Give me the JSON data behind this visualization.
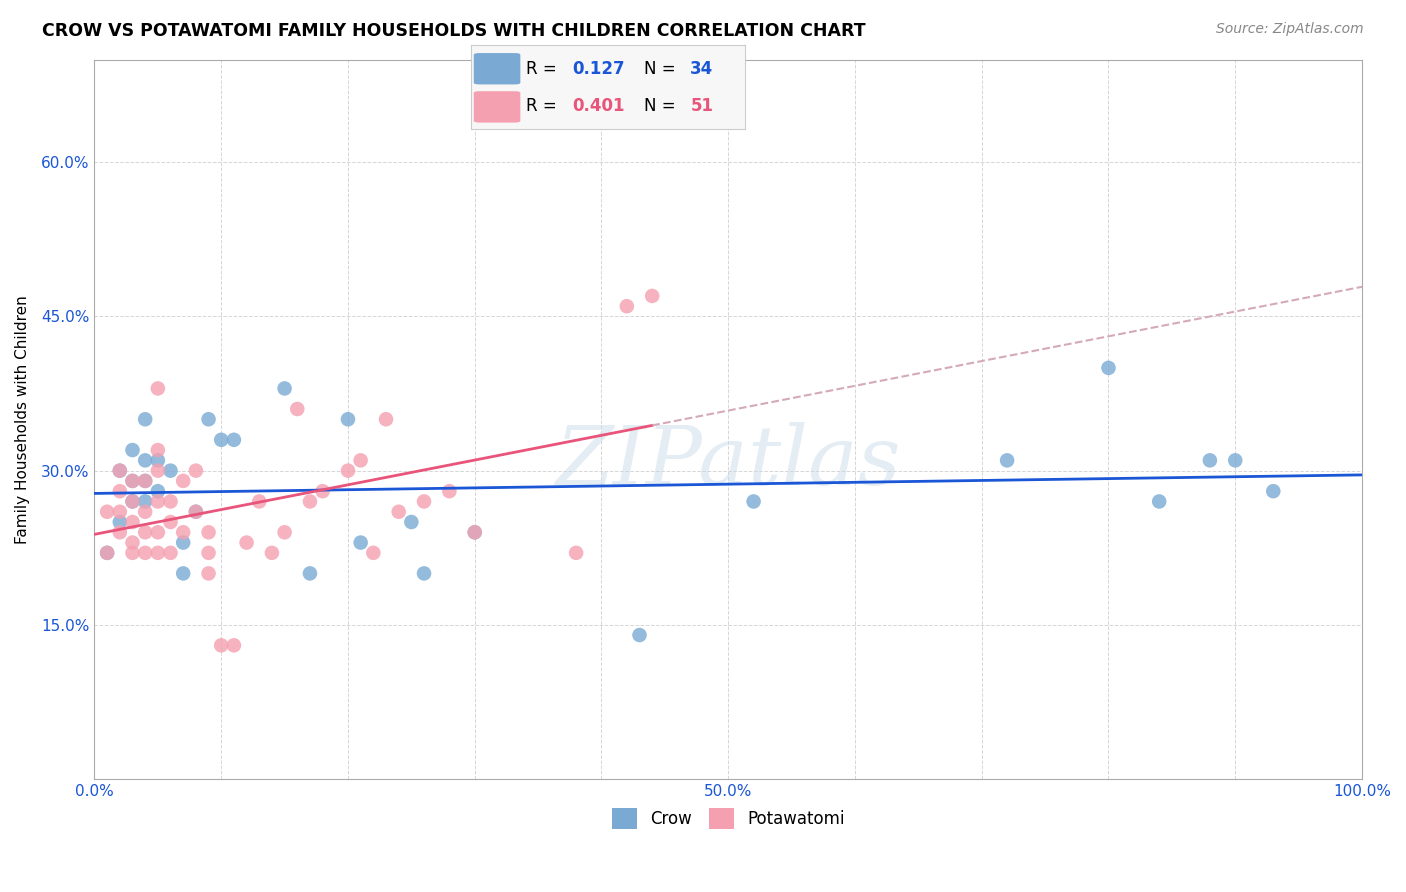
{
  "title": "CROW VS POTAWATOMI FAMILY HOUSEHOLDS WITH CHILDREN CORRELATION CHART",
  "source": "Source: ZipAtlas.com",
  "ylabel": "Family Households with Children",
  "watermark": "ZIPatlas",
  "crow_R": 0.127,
  "crow_N": 34,
  "potawatomi_R": 0.401,
  "potawatomi_N": 51,
  "crow_color": "#7aaad4",
  "potawatomi_color": "#f4a0b0",
  "crow_line_color": "#1a56d6",
  "potawatomi_line_color": "#e8547a",
  "trend_extend_color": "#d4aab8",
  "xlim": [
    0.0,
    1.0
  ],
  "ylim": [
    0.0,
    0.7
  ],
  "crow_x": [
    0.01,
    0.02,
    0.02,
    0.03,
    0.03,
    0.03,
    0.04,
    0.04,
    0.04,
    0.04,
    0.05,
    0.05,
    0.06,
    0.07,
    0.07,
    0.08,
    0.09,
    0.1,
    0.11,
    0.15,
    0.17,
    0.2,
    0.21,
    0.25,
    0.26,
    0.3,
    0.43,
    0.52,
    0.72,
    0.8,
    0.84,
    0.88,
    0.9,
    0.93
  ],
  "crow_y": [
    0.22,
    0.25,
    0.3,
    0.27,
    0.29,
    0.32,
    0.27,
    0.29,
    0.31,
    0.35,
    0.28,
    0.31,
    0.3,
    0.2,
    0.23,
    0.26,
    0.35,
    0.33,
    0.33,
    0.38,
    0.2,
    0.35,
    0.23,
    0.25,
    0.2,
    0.24,
    0.14,
    0.27,
    0.31,
    0.4,
    0.27,
    0.31,
    0.31,
    0.28
  ],
  "potawatomi_x": [
    0.01,
    0.01,
    0.02,
    0.02,
    0.02,
    0.02,
    0.03,
    0.03,
    0.03,
    0.03,
    0.03,
    0.04,
    0.04,
    0.04,
    0.04,
    0.05,
    0.05,
    0.05,
    0.05,
    0.05,
    0.05,
    0.06,
    0.06,
    0.06,
    0.07,
    0.07,
    0.08,
    0.08,
    0.09,
    0.09,
    0.09,
    0.1,
    0.11,
    0.12,
    0.13,
    0.14,
    0.15,
    0.16,
    0.17,
    0.18,
    0.2,
    0.21,
    0.22,
    0.23,
    0.24,
    0.26,
    0.28,
    0.3,
    0.38,
    0.42,
    0.44
  ],
  "potawatomi_y": [
    0.22,
    0.26,
    0.24,
    0.26,
    0.28,
    0.3,
    0.22,
    0.23,
    0.25,
    0.27,
    0.29,
    0.22,
    0.24,
    0.26,
    0.29,
    0.22,
    0.24,
    0.27,
    0.3,
    0.32,
    0.38,
    0.22,
    0.25,
    0.27,
    0.24,
    0.29,
    0.26,
    0.3,
    0.2,
    0.22,
    0.24,
    0.13,
    0.13,
    0.23,
    0.27,
    0.22,
    0.24,
    0.36,
    0.27,
    0.28,
    0.3,
    0.31,
    0.22,
    0.35,
    0.26,
    0.27,
    0.28,
    0.24,
    0.22,
    0.46,
    0.47
  ]
}
